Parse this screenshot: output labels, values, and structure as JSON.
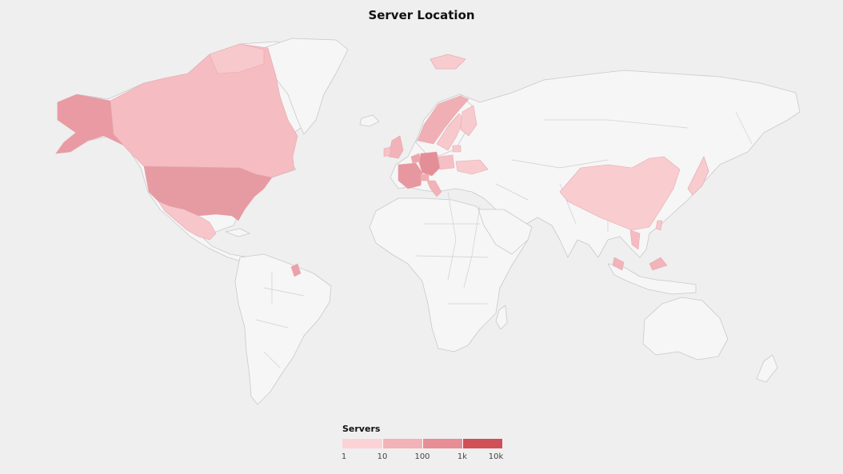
{
  "title": "Server Location",
  "legend": {
    "title": "Servers",
    "ticks": [
      "1",
      "10",
      "100",
      "1k",
      "10k"
    ],
    "color_low": "#fbd3d7",
    "color_high": "#c0191f"
  },
  "colors": {
    "background": "#efefef",
    "land": "#f6f6f6",
    "land_stroke": "#c9c9c9"
  },
  "chart_data": {
    "type": "choropleth",
    "title": "Server Location",
    "legend_title": "Servers",
    "scale": "log",
    "range": [
      1,
      10000
    ],
    "regions": [
      {
        "name": "United States",
        "servers": 100
      },
      {
        "name": "Canada",
        "servers": 5
      },
      {
        "name": "Greenland",
        "servers": 3
      },
      {
        "name": "Mexico",
        "servers": 3
      },
      {
        "name": "Germany",
        "servers": 200
      },
      {
        "name": "France",
        "servers": 100
      },
      {
        "name": "United Kingdom",
        "servers": 10
      },
      {
        "name": "Ireland",
        "servers": 5
      },
      {
        "name": "Norway",
        "servers": 10
      },
      {
        "name": "Sweden",
        "servers": 5
      },
      {
        "name": "Finland",
        "servers": 5
      },
      {
        "name": "Netherlands",
        "servers": 20
      },
      {
        "name": "Switzerland",
        "servers": 10
      },
      {
        "name": "Italy",
        "servers": 10
      },
      {
        "name": "Poland",
        "servers": 5
      },
      {
        "name": "Ukraine",
        "servers": 3
      },
      {
        "name": "Lithuania",
        "servers": 3
      },
      {
        "name": "Iceland",
        "servers": 3
      },
      {
        "name": "Svalbard",
        "servers": 3
      },
      {
        "name": "China",
        "servers": 3
      },
      {
        "name": "Vietnam",
        "servers": 3
      },
      {
        "name": "Taiwan",
        "servers": 3
      },
      {
        "name": "Hong Kong",
        "servers": 3
      },
      {
        "name": "Malaysia",
        "servers": 3
      },
      {
        "name": "Singapore",
        "servers": 3
      },
      {
        "name": "Japan",
        "servers": 3
      },
      {
        "name": "French Guiana",
        "servers": 5
      }
    ]
  }
}
